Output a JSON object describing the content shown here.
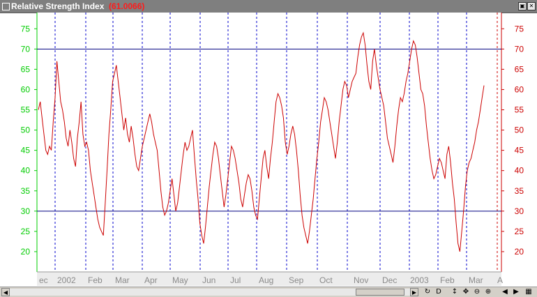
{
  "window": {
    "title": "Relative Strength Index",
    "value": "(61.0066)",
    "buttons": [
      "restore",
      "close"
    ]
  },
  "toolbar": {
    "icons": [
      "refresh-icon",
      "d-icon",
      "move-vertical-icon",
      "move-icon",
      "zoom-out-icon",
      "zoom-in-icon",
      "scroll-left-icon",
      "scroll-right-icon",
      "grid-icon"
    ],
    "d_label": "D"
  },
  "colors": {
    "line": "#cc0000",
    "left_axis": "#00cc00",
    "right_axis": "#cc0000",
    "ref_lines": "#000080",
    "grid": "#0000cc"
  },
  "chart_data": {
    "type": "line",
    "title": "Relative Strength Index",
    "current_value": 61.0066,
    "ylim": [
      15,
      79
    ],
    "yticks": [
      20,
      25,
      30,
      35,
      40,
      45,
      50,
      55,
      60,
      65,
      70,
      75
    ],
    "reference_lines": [
      30,
      70
    ],
    "x_tick_labels": [
      "ec",
      "2002",
      "Feb",
      "Mar",
      "Apr",
      "May",
      "Jun",
      "Jul",
      "Aug",
      "Sep",
      "Oct",
      "Nov",
      "Dec",
      "2003",
      "Feb",
      "Mar",
      "A"
    ],
    "series": [
      {
        "values": [
          55,
          57,
          53,
          49,
          45,
          44,
          46,
          45,
          52,
          58,
          67,
          62,
          57,
          55,
          52,
          48,
          46,
          50,
          47,
          43,
          41,
          48,
          52,
          57,
          49,
          46,
          47,
          45,
          40,
          37,
          34,
          31,
          28,
          26,
          25,
          24,
          32,
          40,
          49,
          55,
          62,
          64,
          66,
          62,
          58,
          54,
          50,
          53,
          49,
          47,
          51,
          48,
          44,
          41,
          40,
          43,
          46,
          48,
          50,
          52,
          54,
          52,
          49,
          47,
          45,
          40,
          35,
          31,
          29,
          30,
          32,
          35,
          38,
          34,
          30,
          32,
          36,
          40,
          44,
          47,
          45,
          46,
          48,
          50,
          44,
          38,
          33,
          27,
          24,
          22,
          26,
          31,
          36,
          40,
          44,
          47,
          46,
          43,
          39,
          35,
          31,
          34,
          38,
          42,
          46,
          45,
          43,
          40,
          37,
          33,
          31,
          34,
          37,
          39,
          38,
          35,
          31,
          29,
          28,
          33,
          38,
          43,
          45,
          41,
          38,
          43,
          47,
          52,
          57,
          59,
          58,
          56,
          53,
          47,
          44,
          46,
          49,
          51,
          49,
          45,
          40,
          34,
          29,
          26,
          24,
          22,
          25,
          29,
          33,
          38,
          43,
          47,
          52,
          55,
          58,
          57,
          55,
          52,
          49,
          46,
          43,
          47,
          52,
          56,
          60,
          62,
          61,
          58,
          60,
          62,
          63,
          64,
          68,
          71,
          73,
          74,
          71,
          66,
          62,
          60,
          67,
          70,
          66,
          63,
          60,
          58,
          56,
          52,
          48,
          46,
          44,
          42,
          46,
          51,
          55,
          58,
          57,
          59,
          62,
          64,
          67,
          70,
          72,
          71,
          68,
          64,
          60,
          59,
          56,
          51,
          47,
          43,
          40,
          38,
          39,
          41,
          43,
          42,
          40,
          38,
          44,
          46,
          42,
          37,
          33,
          27,
          22,
          20,
          25,
          30,
          36,
          40,
          42,
          43,
          45,
          47,
          50,
          52,
          55,
          58,
          61
        ]
      }
    ]
  }
}
